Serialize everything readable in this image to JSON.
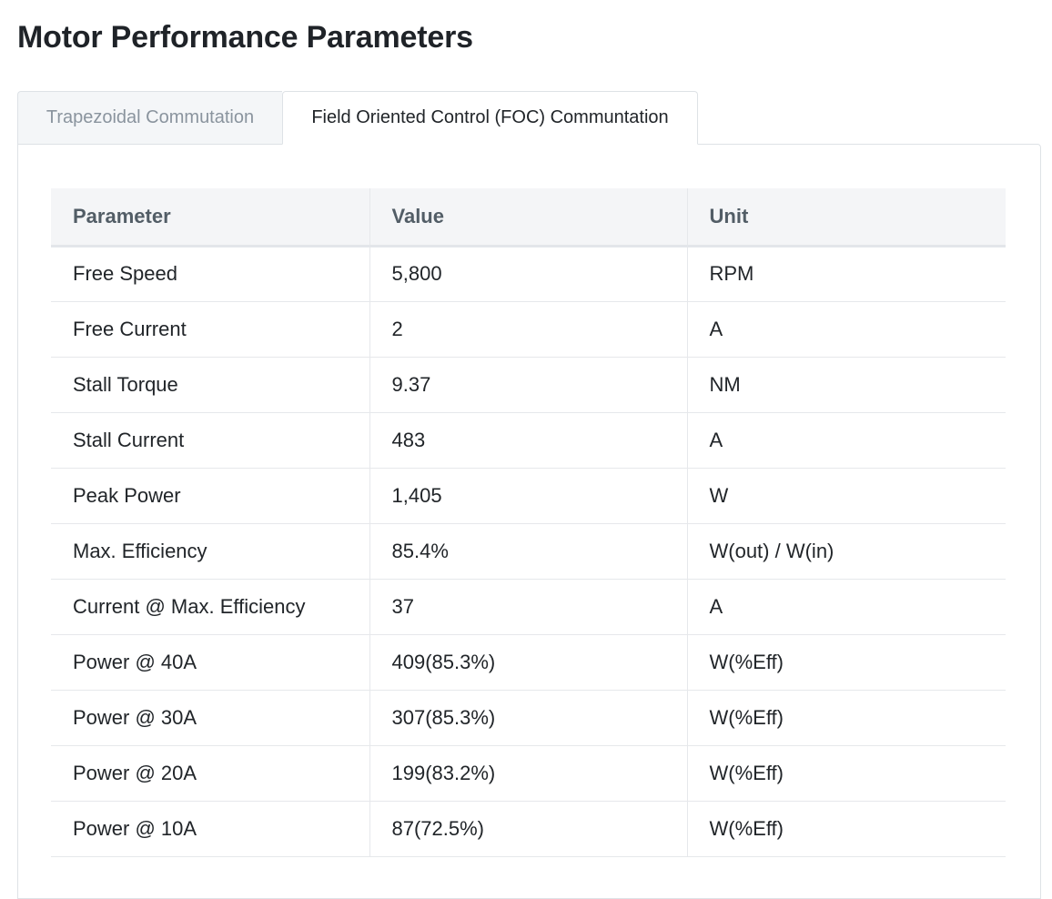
{
  "page": {
    "title": "Motor Performance Parameters"
  },
  "tabs": [
    {
      "label": "Trapezoidal Commutation",
      "active": false
    },
    {
      "label": "Field Oriented Control (FOC) Communtation",
      "active": true
    }
  ],
  "colors": {
    "inactive_tab_bg": "#f4f6f8",
    "inactive_tab_text": "#8a949e",
    "header_bg": "#f4f5f7",
    "header_text": "#525d66",
    "border": "#dee2e6"
  },
  "table": {
    "headers": [
      "Parameter",
      "Value",
      "Unit"
    ],
    "rows": [
      [
        "Free Speed",
        "5,800",
        "RPM"
      ],
      [
        "Free Current",
        "2",
        "A"
      ],
      [
        "Stall Torque",
        "9.37",
        "NM"
      ],
      [
        "Stall Current",
        "483",
        "A"
      ],
      [
        "Peak Power",
        "1,405",
        "W"
      ],
      [
        "Max. Efficiency",
        "85.4%",
        "W(out) / W(in)"
      ],
      [
        "Current @ Max. Efficiency",
        "37",
        "A"
      ],
      [
        "Power @ 40A",
        "409(85.3%)",
        "W(%Eff)"
      ],
      [
        "Power @ 30A",
        "307(85.3%)",
        "W(%Eff)"
      ],
      [
        "Power @ 20A",
        "199(83.2%)",
        "W(%Eff)"
      ],
      [
        "Power @ 10A",
        "87(72.5%)",
        "W(%Eff)"
      ]
    ]
  }
}
